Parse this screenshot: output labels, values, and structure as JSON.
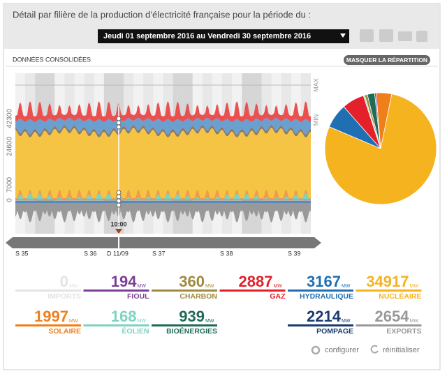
{
  "header": {
    "title": "Détail par filière de la production d’électricité française pour la période du :",
    "period": "Jeudi 01 septembre 2016 au Vendredi 30 septembre 2016"
  },
  "tabs": {
    "label": "DONNÉES CONSOLIDÉES",
    "button": "MASQUER LA RÉPARTITION"
  },
  "area_chart": {
    "yticks": [
      0,
      7000,
      24600,
      42300
    ],
    "max_label": "MAX",
    "min_label": "MIN",
    "cursor_time": "10:00",
    "timeline": [
      "S 35",
      "S 36",
      "D 11/09",
      "S 37",
      "S 38",
      "S 39"
    ]
  },
  "stats": [
    {
      "value": 0,
      "unit": "MW",
      "label": "IMPORTS",
      "color": "#e3e3e3"
    },
    {
      "value": 194,
      "unit": "MW",
      "label": "FIOUL",
      "color": "#7b3f98"
    },
    {
      "value": 360,
      "unit": "MW",
      "label": "CHARBON",
      "color": "#a08a3c"
    },
    {
      "value": 2887,
      "unit": "MW",
      "label": "GAZ",
      "color": "#e4202b"
    },
    {
      "value": 3167,
      "unit": "MW",
      "label": "HYDRAULIQUE",
      "color": "#1f6fb2"
    },
    {
      "value": 34917,
      "unit": "MW",
      "label": "NUCLÉAIRE",
      "color": "#f5b320"
    },
    {
      "value": 1997,
      "unit": "MW",
      "label": "SOLAIRE",
      "color": "#f07f1b"
    },
    {
      "value": 168,
      "unit": "MW",
      "label": "ÉOLIEN",
      "color": "#7dd3c0"
    },
    {
      "value": 939,
      "unit": "MW",
      "label": "BIOÉNERGIES",
      "color": "#1f6b57"
    },
    {
      "value": 2214,
      "unit": "MW",
      "label": "POMPAGE",
      "color": "#1a3b6e"
    },
    {
      "value": 2654,
      "unit": "MW",
      "label": "EXPORTS",
      "color": "#999999"
    }
  ],
  "footer": {
    "configure": "configurer",
    "reset": "réinitialiser"
  }
}
